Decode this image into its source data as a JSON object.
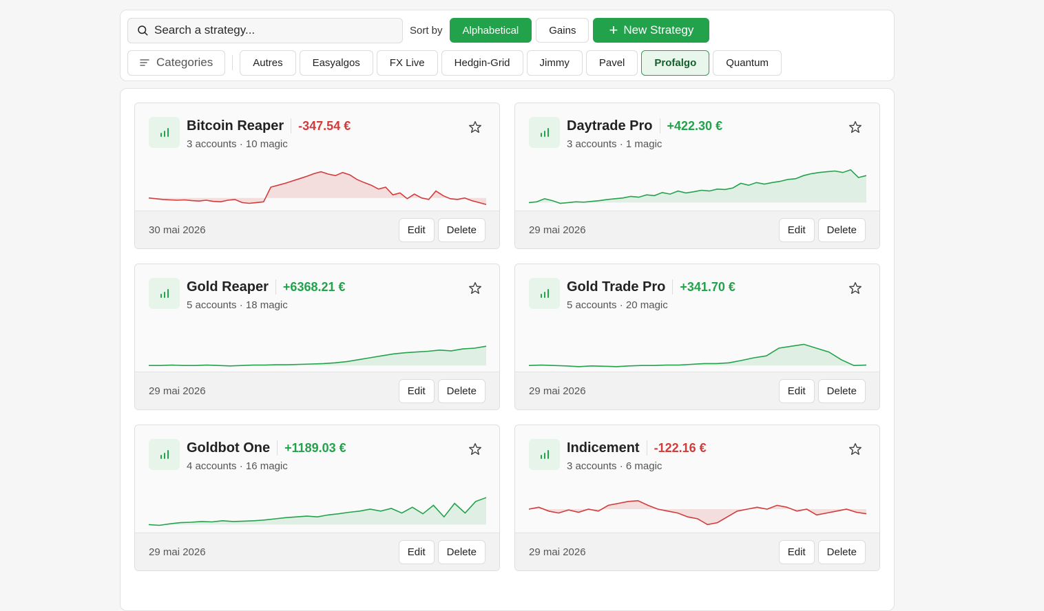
{
  "toolbar": {
    "search_placeholder": "Search a strategy...",
    "sort_label": "Sort by",
    "sort_options": [
      "Alphabetical",
      "Gains"
    ],
    "sort_selected": "Alphabetical",
    "new_label": "New Strategy",
    "categories_label": "Categories",
    "chips": [
      "Autres",
      "Easyalgos",
      "FX Live",
      "Hedgin-Grid",
      "Jimmy",
      "Pavel",
      "Profalgo",
      "Quantum"
    ],
    "chip_selected": "Profalgo"
  },
  "colors": {
    "accent": "#22a24a",
    "negative": "#d33a3a"
  },
  "cards": [
    {
      "name": "Bitcoin Reaper",
      "gain": "-347.54 €",
      "positive": false,
      "meta": "3 accounts · 10 magic",
      "date": "30 mai 2026",
      "edit": "Edit",
      "delete": "Delete",
      "curve": [
        0.22,
        0.2,
        0.18,
        0.17,
        0.16,
        0.17,
        0.15,
        0.14,
        0.16,
        0.13,
        0.12,
        0.16,
        0.18,
        0.1,
        0.08,
        0.1,
        0.12,
        0.5,
        0.55,
        0.6,
        0.66,
        0.72,
        0.78,
        0.85,
        0.9,
        0.84,
        0.8,
        0.88,
        0.82,
        0.7,
        0.62,
        0.55,
        0.45,
        0.5,
        0.3,
        0.35,
        0.2,
        0.32,
        0.22,
        0.18,
        0.4,
        0.28,
        0.2,
        0.18,
        0.22,
        0.15,
        0.1,
        0.05
      ]
    },
    {
      "name": "Daytrade Pro",
      "gain": "+422.30 €",
      "positive": true,
      "meta": "3 accounts · 1 magic",
      "date": "29 mai 2026",
      "edit": "Edit",
      "delete": "Delete",
      "curve": [
        0.1,
        0.12,
        0.2,
        0.15,
        0.08,
        0.1,
        0.12,
        0.11,
        0.13,
        0.15,
        0.18,
        0.2,
        0.22,
        0.26,
        0.24,
        0.3,
        0.28,
        0.36,
        0.32,
        0.4,
        0.35,
        0.38,
        0.42,
        0.4,
        0.45,
        0.44,
        0.48,
        0.6,
        0.55,
        0.62,
        0.58,
        0.62,
        0.65,
        0.7,
        0.72,
        0.8,
        0.85,
        0.88,
        0.9,
        0.92,
        0.88,
        0.95,
        0.75,
        0.8
      ]
    },
    {
      "name": "Gold Reaper",
      "gain": "+6368.21 €",
      "positive": true,
      "meta": "5 accounts · 18 magic",
      "date": "29 mai 2026",
      "edit": "Edit",
      "delete": "Delete",
      "curve": [
        0.05,
        0.05,
        0.06,
        0.05,
        0.05,
        0.06,
        0.05,
        0.04,
        0.05,
        0.06,
        0.06,
        0.07,
        0.07,
        0.08,
        0.09,
        0.1,
        0.12,
        0.15,
        0.2,
        0.25,
        0.3,
        0.35,
        0.38,
        0.4,
        0.42,
        0.45,
        0.43,
        0.48,
        0.5,
        0.55
      ]
    },
    {
      "name": "Gold Trade Pro",
      "gain": "+341.70 €",
      "positive": true,
      "meta": "5 accounts · 20 magic",
      "date": "29 mai 2026",
      "edit": "Edit",
      "delete": "Delete",
      "curve": [
        0.05,
        0.06,
        0.05,
        0.04,
        0.02,
        0.04,
        0.03,
        0.02,
        0.04,
        0.05,
        0.05,
        0.06,
        0.06,
        0.08,
        0.1,
        0.1,
        0.12,
        0.18,
        0.25,
        0.3,
        0.5,
        0.55,
        0.6,
        0.5,
        0.4,
        0.2,
        0.05,
        0.06
      ]
    },
    {
      "name": "Goldbot One",
      "gain": "+1189.03 €",
      "positive": true,
      "meta": "4 accounts · 16 magic",
      "date": "29 mai 2026",
      "edit": "Edit",
      "delete": "Delete",
      "curve": [
        0.1,
        0.08,
        0.12,
        0.15,
        0.16,
        0.18,
        0.17,
        0.2,
        0.18,
        0.19,
        0.2,
        0.22,
        0.25,
        0.28,
        0.3,
        0.32,
        0.3,
        0.35,
        0.38,
        0.42,
        0.45,
        0.5,
        0.45,
        0.52,
        0.4,
        0.55,
        0.38,
        0.6,
        0.3,
        0.65,
        0.4,
        0.7,
        0.8
      ]
    },
    {
      "name": "Indicement",
      "gain": "-122.16 €",
      "positive": false,
      "meta": "3 accounts · 6 magic",
      "date": "29 mai 2026",
      "edit": "Edit",
      "delete": "Delete",
      "curve": [
        0.5,
        0.55,
        0.45,
        0.4,
        0.48,
        0.42,
        0.5,
        0.45,
        0.6,
        0.65,
        0.7,
        0.72,
        0.6,
        0.5,
        0.45,
        0.4,
        0.3,
        0.25,
        0.1,
        0.15,
        0.3,
        0.45,
        0.5,
        0.55,
        0.5,
        0.6,
        0.55,
        0.45,
        0.5,
        0.35,
        0.4,
        0.45,
        0.5,
        0.42,
        0.38
      ]
    }
  ]
}
